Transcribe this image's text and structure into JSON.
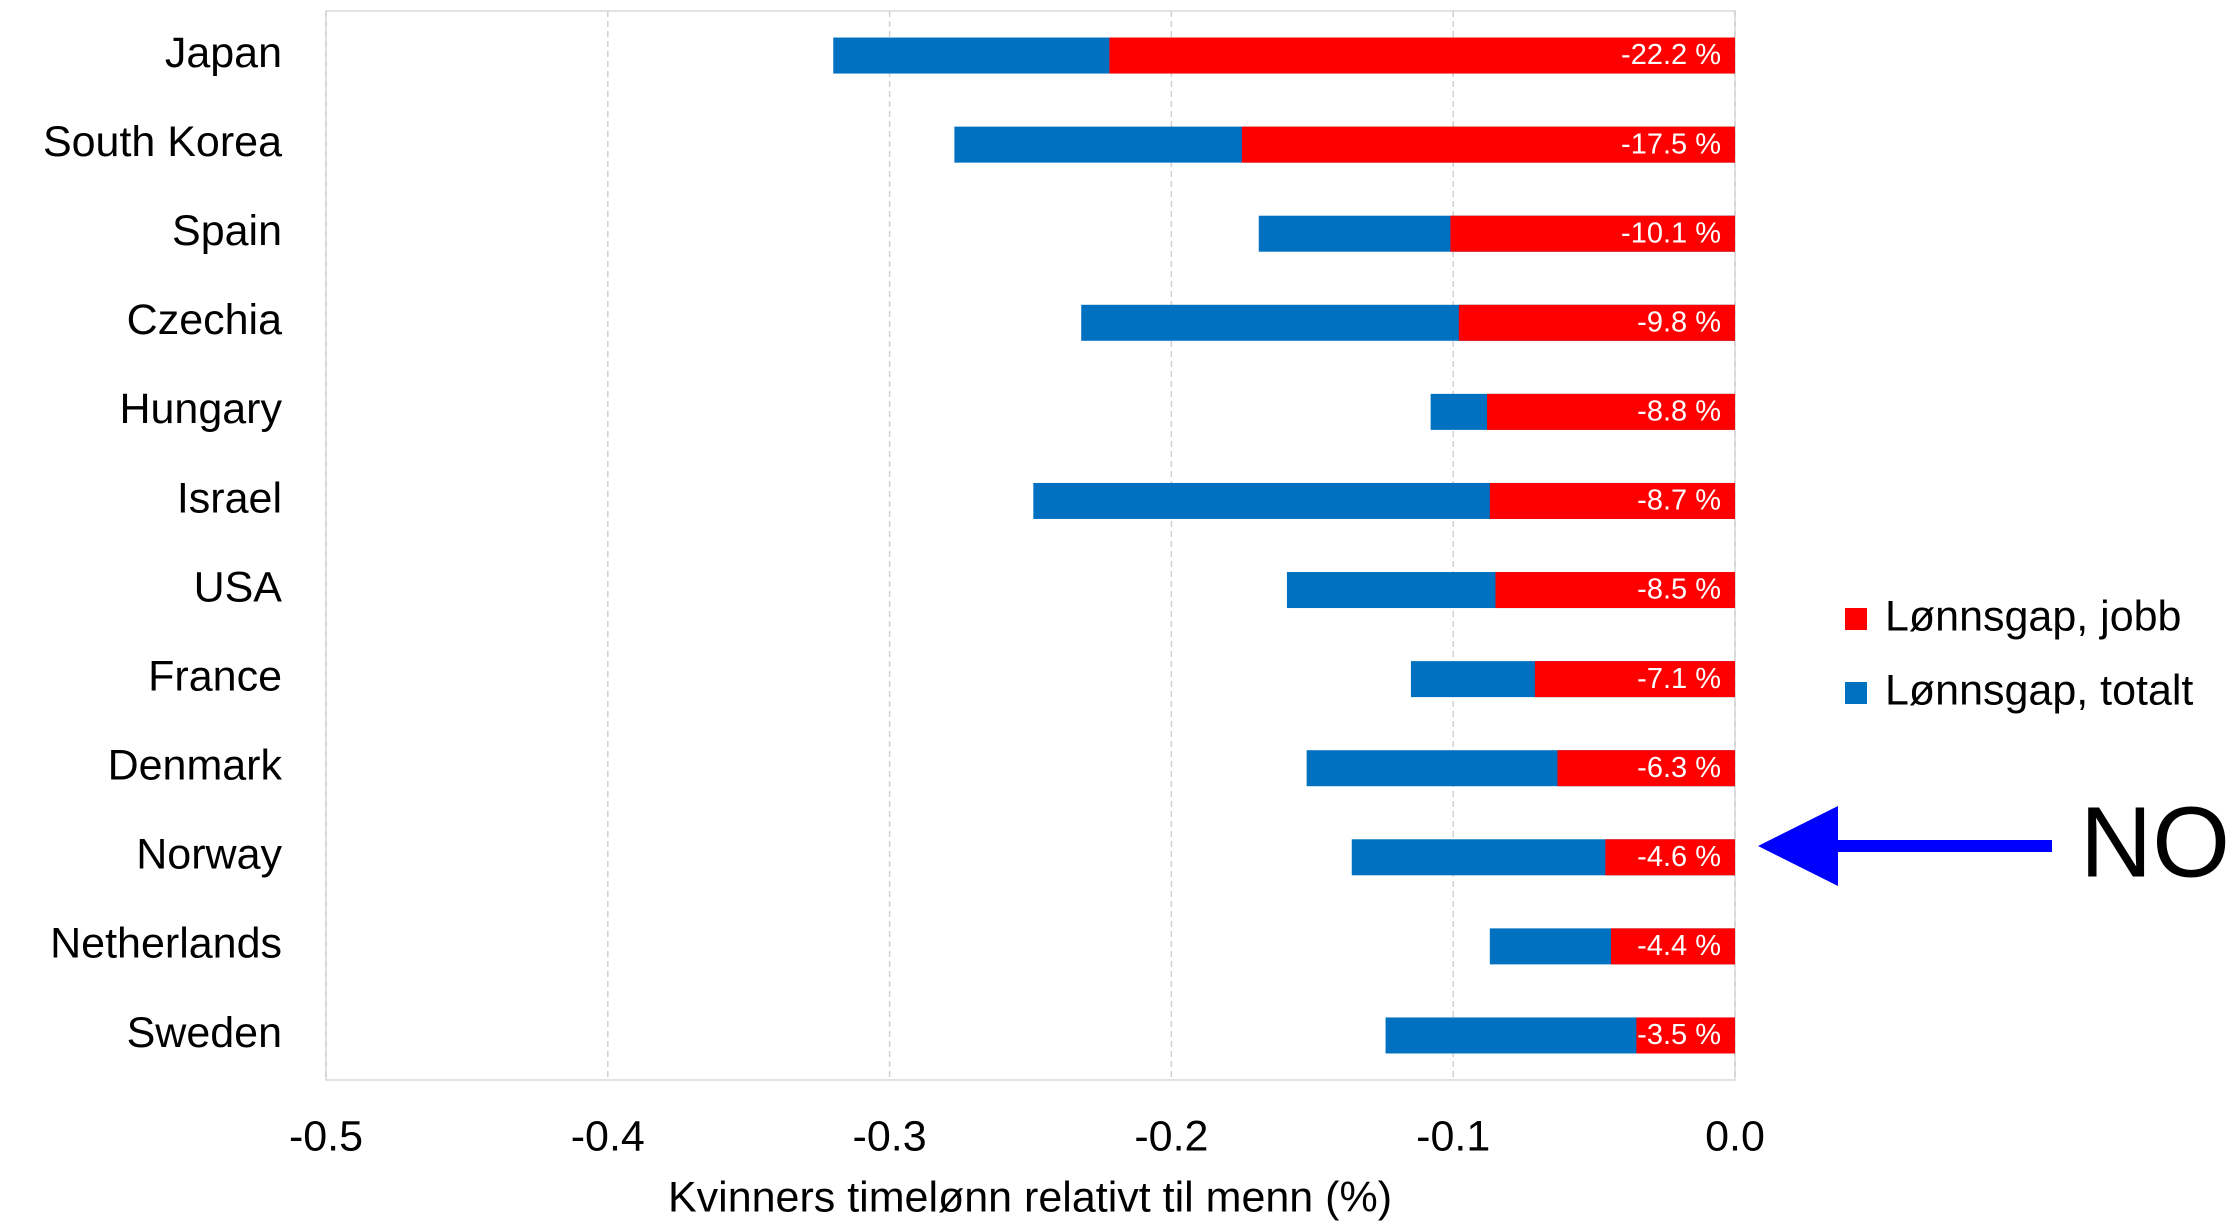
{
  "chart_data": {
    "type": "bar",
    "orientation": "horizontal",
    "xlabel": "Kvinners timelønn relativt til menn (%)",
    "categories": [
      "Japan",
      "South Korea",
      "Spain",
      "Czechia",
      "Hungary",
      "Israel",
      "USA",
      "France",
      "Denmark",
      "Norway",
      "Netherlands",
      "Sweden"
    ],
    "series": [
      {
        "name": "Lønnsgap, jobb",
        "color": "#ff0000",
        "values": [
          -0.222,
          -0.175,
          -0.101,
          -0.098,
          -0.088,
          -0.087,
          -0.085,
          -0.071,
          -0.063,
          -0.046,
          -0.044,
          -0.035
        ],
        "value_labels": [
          "-22.2 %",
          "-17.5 %",
          "-10.1 %",
          "-9.8 %",
          "-8.8 %",
          "-8.7 %",
          "-8.5 %",
          "-7.1 %",
          "-6.3 %",
          "-4.6 %",
          "-4.4 %",
          "-3.5 %"
        ]
      },
      {
        "name": "Lønnsgap, totalt",
        "color": "#0070c0",
        "values": [
          -0.32,
          -0.277,
          -0.169,
          -0.232,
          -0.108,
          -0.249,
          -0.159,
          -0.115,
          -0.152,
          -0.136,
          -0.087,
          -0.124
        ]
      }
    ],
    "xlim": [
      -0.5,
      0
    ],
    "xticks": [
      -0.5,
      -0.4,
      -0.3,
      -0.2,
      -0.1,
      {
        "value": 0,
        "label": "0.0"
      }
    ],
    "grid": true,
    "legend": "right",
    "annotation": "NO",
    "annotation_color": "#0000ff"
  }
}
